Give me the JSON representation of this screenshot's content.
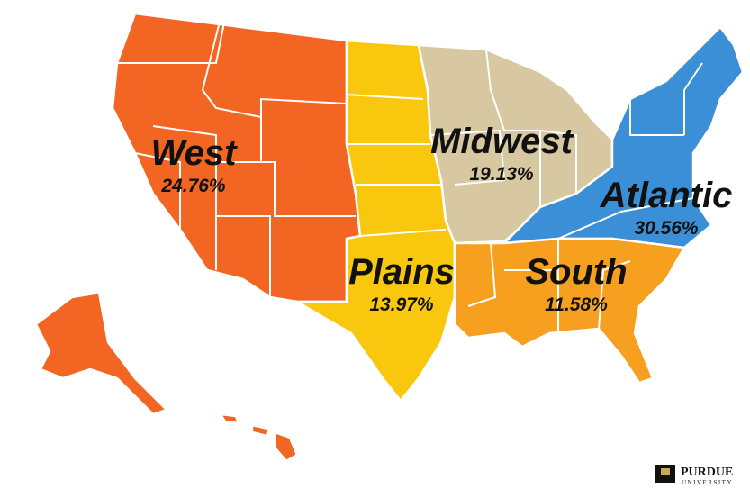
{
  "regions": [
    {
      "name": "West",
      "label": "24.76%",
      "color": "#f26522"
    },
    {
      "name": "Plains",
      "label": "13.97%",
      "color": "#f9c80e"
    },
    {
      "name": "Midwest",
      "label": "19.13%",
      "color": "#d8c8a2"
    },
    {
      "name": "Atlantic",
      "label": "30.56%",
      "color": "#3a8fd6"
    },
    {
      "name": "South",
      "label": "11.58%",
      "color": "#f7a01f"
    }
  ],
  "logo": {
    "name": "PURDUE",
    "subtitle": "UNIVERSITY"
  }
}
